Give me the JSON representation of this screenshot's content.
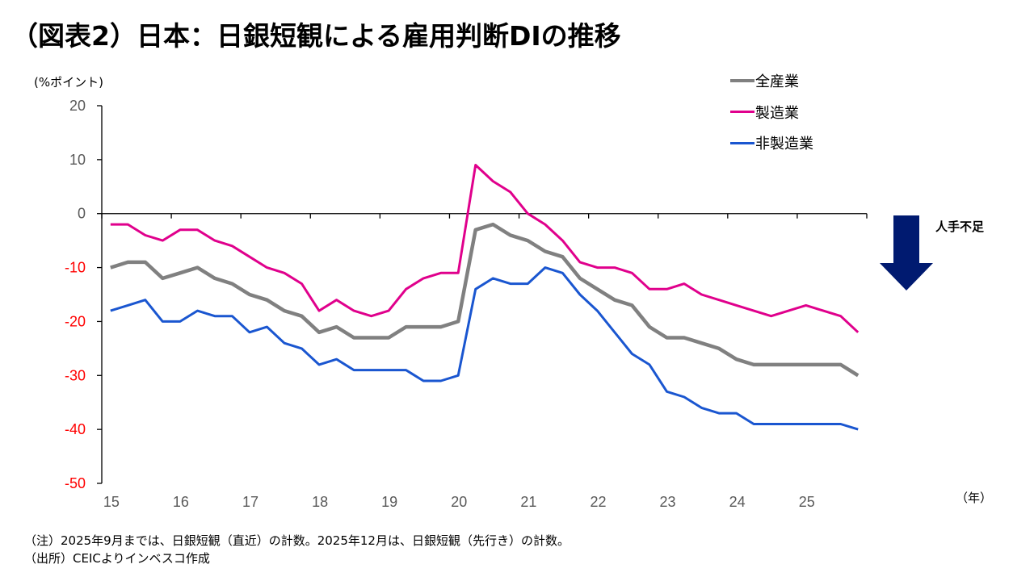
{
  "title": "（図表2）日本：日銀短観による雇用判断DIの推移",
  "colors": {
    "all_industries": "#808080",
    "manufacturing": "#E0008C",
    "non_manufacturing": "#1A56D0",
    "positive_tick": "#595959",
    "negative_tick": "#FF0000",
    "arrow": "#001A70"
  },
  "annotation": {
    "label": "人手不足",
    "icon": "down-arrow-icon"
  },
  "notes": [
    "（注）2025年9月までは、日銀短観（直近）の計数。2025年12月は、日銀短観（先行き）の計数。",
    "（出所）CEICよりインベスコ作成"
  ],
  "chart_data": {
    "type": "line",
    "title": "（図表2）日本：日銀短観による雇用判断DIの推移",
    "ylabel": "(%ポイント)",
    "xlabel": "（年）",
    "ylim": [
      -50,
      20
    ],
    "yticks": [
      20,
      10,
      0,
      -10,
      -20,
      -30,
      -40,
      -50
    ],
    "ytick_labels": [
      "20",
      "10",
      "0",
      "-10",
      "-20",
      "-30",
      "-40",
      "-50"
    ],
    "x_year_range": [
      2015,
      2026
    ],
    "xtick_labels": [
      "15",
      "16",
      "17",
      "18",
      "19",
      "20",
      "21",
      "22",
      "23",
      "24",
      "25"
    ],
    "frequency": "quarterly",
    "x": [
      "2015Q1",
      "2015Q2",
      "2015Q3",
      "2015Q4",
      "2016Q1",
      "2016Q2",
      "2016Q3",
      "2016Q4",
      "2017Q1",
      "2017Q2",
      "2017Q3",
      "2017Q4",
      "2018Q1",
      "2018Q2",
      "2018Q3",
      "2018Q4",
      "2019Q1",
      "2019Q2",
      "2019Q3",
      "2019Q4",
      "2020Q1",
      "2020Q2",
      "2020Q3",
      "2020Q4",
      "2021Q1",
      "2021Q2",
      "2021Q3",
      "2021Q4",
      "2022Q1",
      "2022Q2",
      "2022Q3",
      "2022Q4",
      "2023Q1",
      "2023Q2",
      "2023Q3",
      "2023Q4",
      "2024Q1",
      "2024Q2",
      "2024Q3",
      "2024Q4",
      "2025Q1",
      "2025Q2",
      "2025Q3",
      "2025Q4"
    ],
    "legend_position": "top-right",
    "grid": false,
    "series": [
      {
        "name": "全産業",
        "key": "all_industries",
        "values": [
          -10,
          -9,
          -9,
          -12,
          -11,
          -10,
          -12,
          -13,
          -15,
          -16,
          -18,
          -19,
          -22,
          -21,
          -23,
          -23,
          -23,
          -21,
          -21,
          -21,
          -20,
          -3,
          -2,
          -4,
          -5,
          -7,
          -8,
          -12,
          -14,
          -16,
          -17,
          -21,
          -23,
          -23,
          -24,
          -25,
          -27,
          -28,
          -28,
          -28,
          -28,
          -28,
          -28,
          -30
        ]
      },
      {
        "name": "製造業",
        "key": "manufacturing",
        "values": [
          -2,
          -2,
          -4,
          -5,
          -3,
          -3,
          -5,
          -6,
          -8,
          -10,
          -11,
          -13,
          -18,
          -16,
          -18,
          -19,
          -18,
          -14,
          -12,
          -11,
          -11,
          9,
          6,
          4,
          0,
          -2,
          -5,
          -9,
          -10,
          -10,
          -11,
          -14,
          -14,
          -13,
          -15,
          -16,
          -17,
          -18,
          -19,
          -18,
          -17,
          -18,
          -19,
          -22
        ]
      },
      {
        "name": "非製造業",
        "key": "non_manufacturing",
        "values": [
          -18,
          -17,
          -16,
          -20,
          -20,
          -18,
          -19,
          -19,
          -22,
          -21,
          -24,
          -25,
          -28,
          -27,
          -29,
          -29,
          -29,
          -29,
          -31,
          -31,
          -30,
          -14,
          -12,
          -13,
          -13,
          -10,
          -11,
          -15,
          -18,
          -22,
          -26,
          -28,
          -33,
          -34,
          -36,
          -37,
          -37,
          -39,
          -39,
          -39,
          -39,
          -39,
          -39,
          -40
        ]
      }
    ]
  }
}
